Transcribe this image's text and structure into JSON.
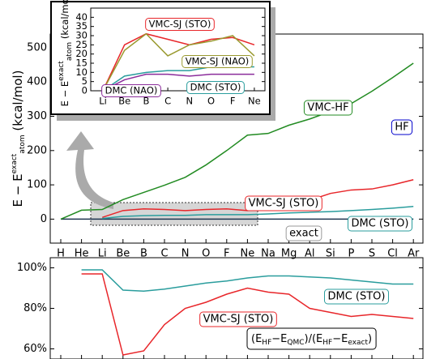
{
  "chart_data": [
    {
      "type": "line",
      "ylabel": {
        "main": "E − E",
        "sup": "exact",
        "sub": "atom",
        "unit": " (kcal/mol)"
      },
      "categories": [
        "H",
        "He",
        "Li",
        "Be",
        "B",
        "C",
        "N",
        "O",
        "F",
        "Ne",
        "Na",
        "Mg",
        "Al",
        "Si",
        "P",
        "S",
        "Cl",
        "Ar"
      ],
      "ylim": [
        -70,
        540
      ],
      "yticks": [
        0,
        100,
        200,
        300,
        400,
        500
      ],
      "series": [
        {
          "name": "exact",
          "color": "#1f3550",
          "values": [
            0,
            0,
            0,
            0,
            0,
            0,
            0,
            0,
            0,
            0,
            0,
            0,
            0,
            0,
            0,
            0,
            0,
            0
          ]
        },
        {
          "name": "VMC-HF",
          "color": "#228b22",
          "values": [
            0,
            26,
            28,
            57,
            78,
            99,
            122,
            158,
            200,
            245,
            250,
            274,
            292,
            314,
            337,
            373,
            413,
            455
          ]
        },
        {
          "name": "VMC-SJ (STO)",
          "color": "#e8262a",
          "values": [
            null,
            null,
            5,
            25,
            30,
            28,
            25,
            28,
            30,
            25,
            30,
            48,
            55,
            75,
            85,
            88,
            100,
            115
          ]
        },
        {
          "name": "DMC (STO)",
          "color": "#2a9d9d",
          "values": [
            null,
            null,
            2,
            8,
            10,
            11,
            11,
            13,
            13,
            13,
            15,
            18,
            20,
            22,
            25,
            28,
            32,
            37
          ]
        }
      ],
      "annotations": [
        {
          "text": "VMC-HF",
          "color": "#228b22"
        },
        {
          "text": "HF",
          "color": "#0000cc"
        },
        {
          "text": "VMC-SJ (STO)",
          "color": "#e8262a"
        },
        {
          "text": "DMC (STO)",
          "color": "#2a9d9d"
        },
        {
          "text": "exact",
          "color": "#999999"
        }
      ]
    },
    {
      "type": "line",
      "ylabel": {
        "main": "E − E",
        "sup": "exact",
        "sub": "atom",
        "unit": " (kcal/mol)"
      },
      "categories": [
        "Li",
        "Be",
        "B",
        "C",
        "N",
        "O",
        "F",
        "Ne"
      ],
      "ylim": [
        0,
        45
      ],
      "yticks": [
        0,
        5,
        10,
        15,
        20,
        25,
        30,
        35,
        40
      ],
      "series": [
        {
          "name": "VMC-SJ (STO)",
          "color": "#e8262a",
          "values": [
            0,
            25,
            31,
            28,
            25,
            28,
            29,
            25
          ]
        },
        {
          "name": "VMC-SJ (NAO)",
          "color": "#9a9a30",
          "values": [
            0,
            22,
            31,
            19,
            25,
            27,
            30,
            19
          ]
        },
        {
          "name": "DMC (NAO)",
          "color": "#8b2c9b",
          "values": [
            0,
            6,
            9,
            9,
            8,
            9,
            9,
            9
          ]
        },
        {
          "name": "DMC (STO)",
          "color": "#2a9d9d",
          "values": [
            0,
            8,
            10,
            11,
            11,
            13,
            13,
            13
          ]
        }
      ],
      "annotations": [
        {
          "text": "VMC-SJ (STO)",
          "color": "#e8262a"
        },
        {
          "text": "VMC-SJ (NAO)",
          "color": "#9a9a30"
        },
        {
          "text": "DMC (NAO)",
          "color": "#8b2c9b"
        },
        {
          "text": "DMC (STO)",
          "color": "#2a9d9d"
        }
      ]
    },
    {
      "type": "line",
      "categories": [
        "H",
        "He",
        "Li",
        "Be",
        "B",
        "C",
        "N",
        "O",
        "F",
        "Ne",
        "Na",
        "Mg",
        "Al",
        "Si",
        "P",
        "S",
        "Cl",
        "Ar"
      ],
      "ylim": [
        55,
        105
      ],
      "yticks": [
        {
          "value": 60,
          "label": "60%"
        },
        {
          "value": 80,
          "label": "80%"
        },
        {
          "value": 100,
          "label": "100%"
        }
      ],
      "series": [
        {
          "name": "VMC-SJ (STO)",
          "color": "#e8262a",
          "values": [
            null,
            97,
            97,
            57,
            59,
            72,
            80,
            83,
            87,
            90,
            88,
            87,
            80,
            78,
            76,
            77,
            76,
            75
          ]
        },
        {
          "name": "DMC (STO)",
          "color": "#2a9d9d",
          "values": [
            null,
            99,
            99,
            89,
            88.5,
            89.5,
            91,
            92.5,
            93.5,
            95,
            96,
            96,
            95.5,
            95,
            94,
            93,
            92,
            92
          ]
        }
      ],
      "annotations": [
        {
          "text": "DMC (STO)",
          "color": "#2a9d9d"
        },
        {
          "text": "VMC-SJ (STO)",
          "color": "#e8262a"
        }
      ],
      "formula": [
        "(E",
        "HF",
        "−E",
        "QMC",
        ")/(E",
        "HF",
        "−E",
        "exact",
        ")"
      ]
    }
  ]
}
